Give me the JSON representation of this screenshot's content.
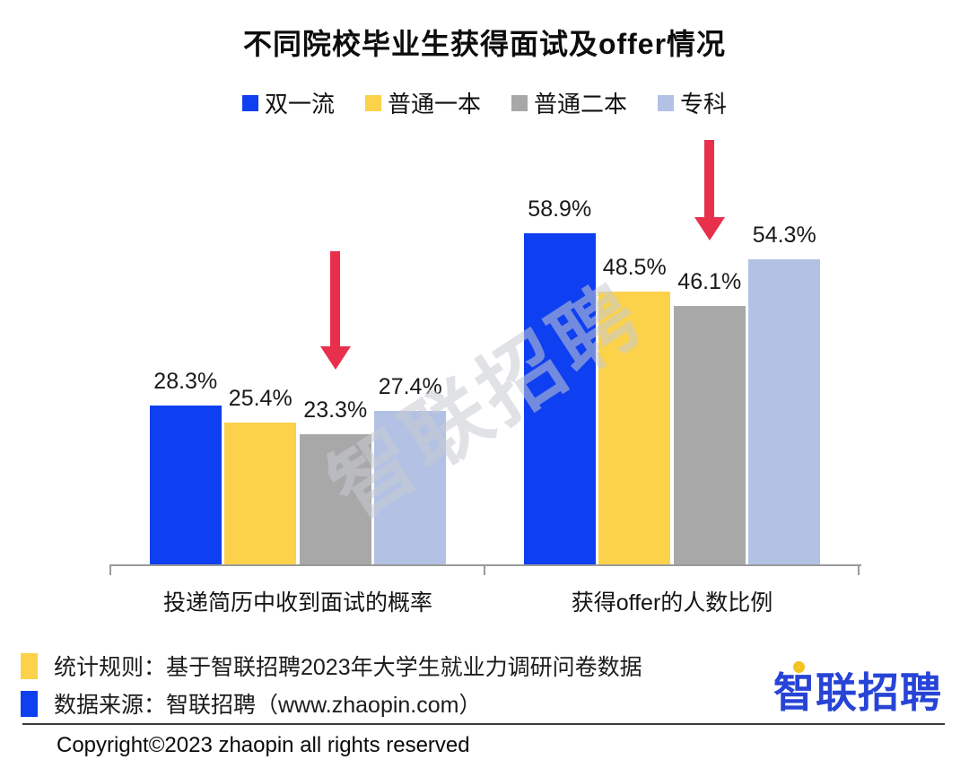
{
  "title": "不同院校毕业生获得面试及offer情况",
  "watermark": "智联招聘",
  "chart_data": {
    "type": "bar",
    "categories": [
      "投递简历中收到面试的概率",
      "获得offer的人数比例"
    ],
    "series": [
      {
        "name": "双一流",
        "color": "#0e3ff0",
        "values": [
          28.3,
          58.9
        ]
      },
      {
        "name": "普通一本",
        "color": "#fbd24a",
        "values": [
          25.4,
          48.5
        ]
      },
      {
        "name": "普通二本",
        "color": "#a8a8a8",
        "values": [
          23.3,
          46.1
        ]
      },
      {
        "name": "专科",
        "color": "#b3c1e4",
        "values": [
          27.4,
          54.3
        ]
      }
    ],
    "value_suffix": "%",
    "ylim": [
      0,
      65
    ],
    "grid": false,
    "legend_position": "top",
    "annotations": [
      {
        "type": "arrow-down",
        "target_series": "普通二本",
        "target_series_index": 2,
        "color": "#e8304d",
        "note": "red arrows point at 普通二本 bars in both groups"
      }
    ]
  },
  "footnotes": [
    {
      "swatch_color": "#fbd24a",
      "text": "统计规则：基于智联招聘2023年大学生就业力调研问卷数据"
    },
    {
      "swatch_color": "#0e3ff0",
      "text": "数据来源：智联招聘（www.zhaopin.com）"
    }
  ],
  "logo_text": "智联招聘",
  "copyright": "Copyright©2023 zhaopin all rights reserved"
}
